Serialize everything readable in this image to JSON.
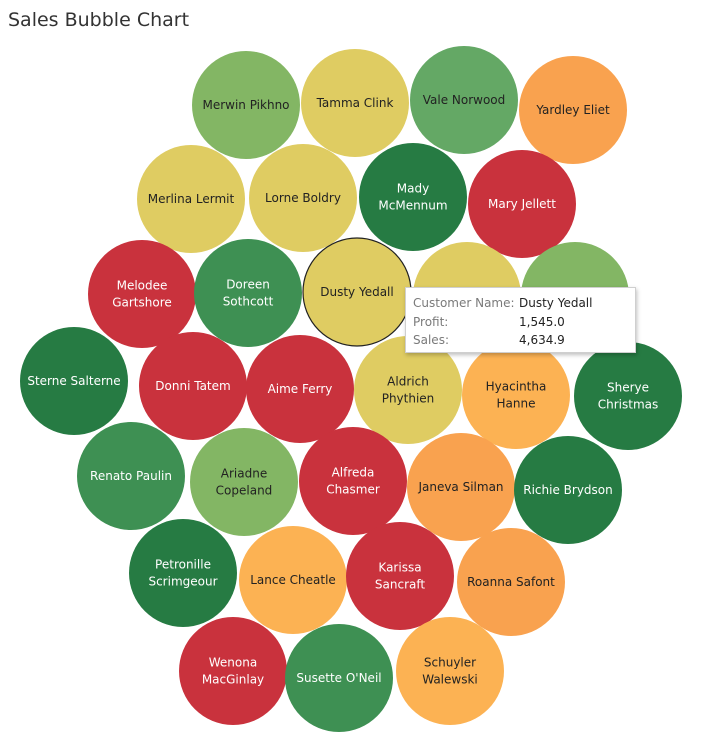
{
  "title": "Sales Bubble Chart",
  "colors": {
    "dark_green": "#267B43",
    "medium_green": "#3E9053",
    "light_green": "#64A865",
    "pale_green": "#83B664",
    "yellow": "#DFCC62",
    "light_orange": "#FCB253",
    "orange": "#F9A24F",
    "red": "#C9323D",
    "highlight_stroke": "#222222"
  },
  "tooltip": {
    "rows": [
      {
        "label": "Customer Name:",
        "value": "Dusty Yedall"
      },
      {
        "label": "Profit:",
        "value": "1,545.0"
      },
      {
        "label": "Sales:",
        "value": "4,634.9"
      }
    ]
  },
  "chart_data": {
    "type": "bubble",
    "title": "Sales Bubble Chart",
    "label_field": "Customer Name",
    "color_field": "Profit",
    "size_field": "Sales",
    "highlighted": "Dusty Yedall",
    "bubbles": [
      {
        "name": [
          "Merwin Pikhno"
        ],
        "color": "pale_green"
      },
      {
        "name": [
          "Tamma Clink"
        ],
        "color": "yellow"
      },
      {
        "name": [
          "Vale Norwood"
        ],
        "color": "light_green"
      },
      {
        "name": [
          "Yardley Eliet"
        ],
        "color": "orange"
      },
      {
        "name": [
          "Merlina Lermit"
        ],
        "color": "yellow"
      },
      {
        "name": [
          "Lorne Boldry"
        ],
        "color": "yellow"
      },
      {
        "name": [
          "Mady",
          "McMennum"
        ],
        "color": "dark_green"
      },
      {
        "name": [
          "Mary Jellett"
        ],
        "color": "red"
      },
      {
        "name": [
          "Melodee",
          "Gartshore"
        ],
        "color": "red"
      },
      {
        "name": [
          "Doreen",
          "Sothcott"
        ],
        "color": "medium_green"
      },
      {
        "name": [
          "Dusty Yedall"
        ],
        "color": "yellow",
        "profit": 1545.0,
        "sales": 4634.9
      },
      {
        "name": [
          ""
        ],
        "color": "yellow"
      },
      {
        "name": [
          ""
        ],
        "color": "pale_green"
      },
      {
        "name": [
          "Sterne Salterne"
        ],
        "color": "dark_green"
      },
      {
        "name": [
          "Donni Tatem"
        ],
        "color": "red"
      },
      {
        "name": [
          "Aime Ferry"
        ],
        "color": "red"
      },
      {
        "name": [
          "Aldrich",
          "Phythien"
        ],
        "color": "yellow"
      },
      {
        "name": [
          "Hyacintha",
          "Hanne"
        ],
        "color": "light_orange"
      },
      {
        "name": [
          "Sherye",
          "Christmas"
        ],
        "color": "dark_green"
      },
      {
        "name": [
          "Renato Paulin"
        ],
        "color": "medium_green"
      },
      {
        "name": [
          "Ariadne",
          "Copeland"
        ],
        "color": "pale_green"
      },
      {
        "name": [
          "Alfreda",
          "Chasmer"
        ],
        "color": "red"
      },
      {
        "name": [
          "Janeva Silman"
        ],
        "color": "orange"
      },
      {
        "name": [
          "Richie Brydson"
        ],
        "color": "dark_green"
      },
      {
        "name": [
          "Petronille",
          "Scrimgeour"
        ],
        "color": "dark_green"
      },
      {
        "name": [
          "Lance Cheatle"
        ],
        "color": "light_orange"
      },
      {
        "name": [
          "Karissa",
          "Sancraft"
        ],
        "color": "red"
      },
      {
        "name": [
          "Roanna Safont"
        ],
        "color": "orange"
      },
      {
        "name": [
          "Wenona",
          "MacGinlay"
        ],
        "color": "red"
      },
      {
        "name": [
          "Susette O'Neil"
        ],
        "color": "medium_green"
      },
      {
        "name": [
          "Schuyler",
          "Walewski"
        ],
        "color": "light_orange"
      }
    ]
  }
}
